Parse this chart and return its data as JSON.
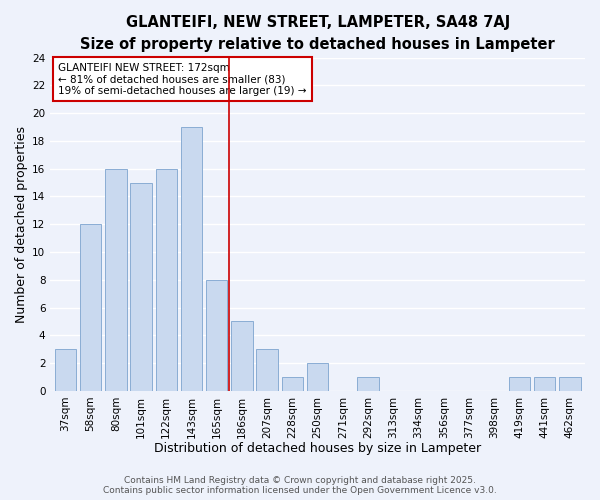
{
  "title": "GLANTEIFI, NEW STREET, LAMPETER, SA48 7AJ",
  "subtitle": "Size of property relative to detached houses in Lampeter",
  "xlabel": "Distribution of detached houses by size in Lampeter",
  "ylabel": "Number of detached properties",
  "bar_color": "#c9d9ef",
  "bar_edge_color": "#8aadd4",
  "background_color": "#eef2fb",
  "grid_color": "#ffffff",
  "categories": [
    "37sqm",
    "58sqm",
    "80sqm",
    "101sqm",
    "122sqm",
    "143sqm",
    "165sqm",
    "186sqm",
    "207sqm",
    "228sqm",
    "250sqm",
    "271sqm",
    "292sqm",
    "313sqm",
    "334sqm",
    "356sqm",
    "377sqm",
    "398sqm",
    "419sqm",
    "441sqm",
    "462sqm"
  ],
  "values": [
    3,
    12,
    16,
    15,
    16,
    19,
    8,
    5,
    3,
    1,
    2,
    0,
    1,
    0,
    0,
    0,
    0,
    0,
    1,
    1,
    1
  ],
  "ylim": [
    0,
    24
  ],
  "yticks": [
    0,
    2,
    4,
    6,
    8,
    10,
    12,
    14,
    16,
    18,
    20,
    22,
    24
  ],
  "vline_x": 6.5,
  "vline_color": "#cc0000",
  "annotation_title": "GLANTEIFI NEW STREET: 172sqm",
  "annotation_line1": "← 81% of detached houses are smaller (83)",
  "annotation_line2": "19% of semi-detached houses are larger (19) →",
  "annotation_box_color": "#ffffff",
  "annotation_box_edge": "#cc0000",
  "footer_line1": "Contains HM Land Registry data © Crown copyright and database right 2025.",
  "footer_line2": "Contains public sector information licensed under the Open Government Licence v3.0.",
  "title_fontsize": 10.5,
  "subtitle_fontsize": 9.5,
  "label_fontsize": 9,
  "tick_fontsize": 7.5,
  "annotation_fontsize": 7.5,
  "footer_fontsize": 6.5
}
